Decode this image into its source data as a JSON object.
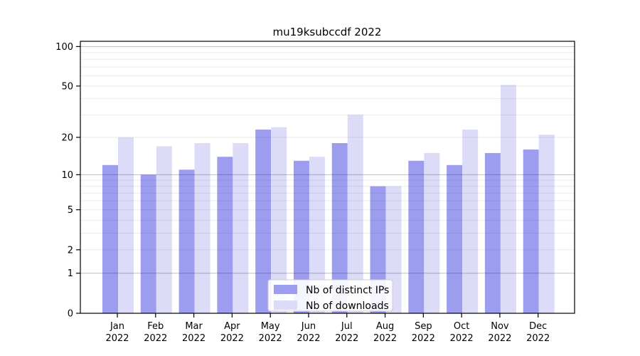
{
  "chart_data": {
    "type": "bar",
    "title": "mu19ksubccdf 2022",
    "categories": [
      "Jan 2022",
      "Feb 2022",
      "Mar 2022",
      "Apr 2022",
      "May 2022",
      "Jun 2022",
      "Jul 2022",
      "Aug 2022",
      "Sep 2022",
      "Oct 2022",
      "Nov 2022",
      "Dec 2022"
    ],
    "series": [
      {
        "name": "Nb of distinct IPs",
        "color": "#9d9df0",
        "values": [
          12,
          10,
          11,
          14,
          23,
          13,
          18,
          8,
          13,
          12,
          15,
          16
        ]
      },
      {
        "name": "Nb of downloads",
        "color": "#dcdcf9",
        "values": [
          20,
          17,
          18,
          18,
          24,
          14,
          30,
          8,
          15,
          23,
          51,
          21
        ]
      }
    ],
    "yscale": "log1p",
    "ylim": [
      0,
      110
    ],
    "yticks": [
      0,
      1,
      2,
      5,
      10,
      20,
      50,
      100
    ],
    "major_gridlines": [
      1,
      10,
      100
    ],
    "minor_gridlines": [
      2,
      3,
      4,
      5,
      6,
      7,
      8,
      9,
      20,
      30,
      40,
      50,
      60,
      70,
      80,
      90
    ],
    "grid": true,
    "legend": {
      "position": "lower center",
      "items": [
        "Nb of distinct IPs",
        "Nb of downloads"
      ]
    }
  },
  "colors": {
    "axis": "#000000",
    "major_grid": "rgba(0,0,0,0.25)",
    "minor_grid": "rgba(0,0,0,0.08)",
    "legend_border": "#cccccc",
    "legend_bg": "#ffffff"
  }
}
